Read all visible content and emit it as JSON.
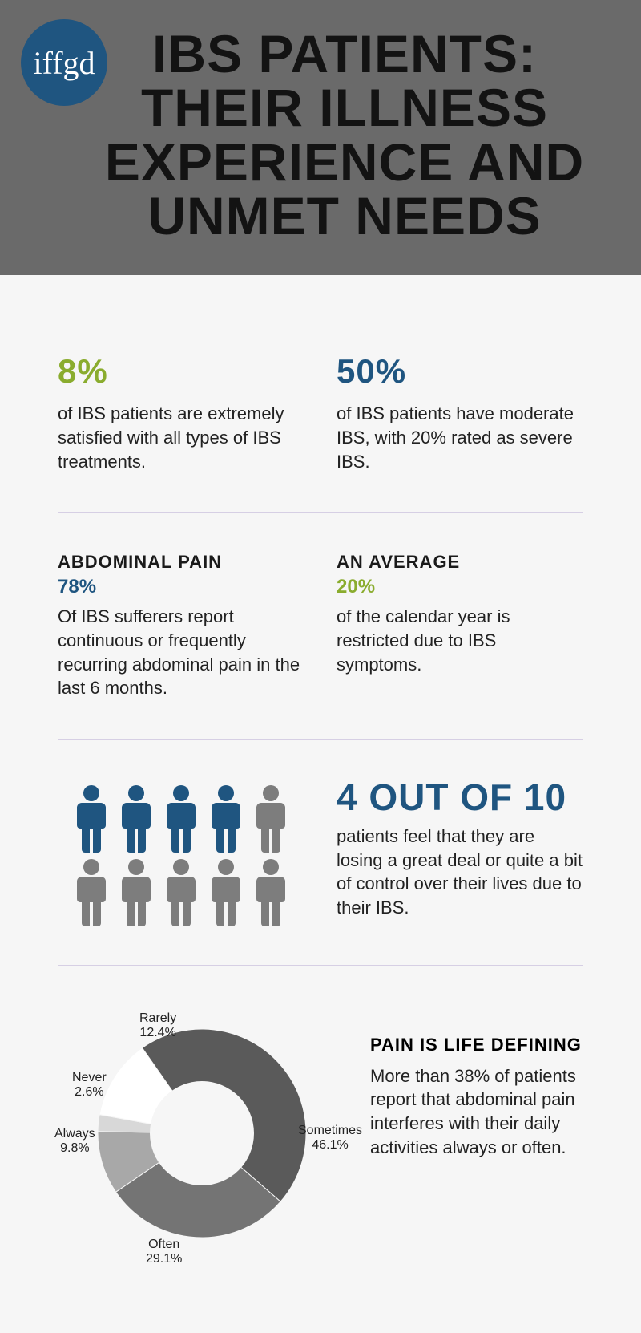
{
  "logo": "iffgd",
  "title": "IBS PATIENTS: THEIR ILLNESS EXPERIENCE AND UNMET NEEDS",
  "stats": {
    "satisfied": {
      "pct": "8%",
      "text": "of IBS patients are extremely satisfied with all types of IBS treatments.",
      "color": "#8aac2e"
    },
    "moderate": {
      "pct": "50%",
      "text": "of IBS patients have moderate IBS, with 20% rated as severe IBS.",
      "color": "#1f5580"
    },
    "abdominal": {
      "head": "ABDOMINAL PAIN",
      "pct": "78%",
      "text": "Of IBS sufferers report continuous or frequently recurring abdominal pain in the last 6 months.",
      "color": "#1f5580"
    },
    "average": {
      "head": "AN AVERAGE",
      "pct": "20%",
      "text": "of the calendar year is restricted due to IBS symptoms.",
      "color": "#8aac2e"
    },
    "control": {
      "big": "4 OUT OF 10",
      "text": "patients feel that they are losing a great deal or quite a bit of control over their lives due to their IBS.",
      "color": "#1f5580"
    }
  },
  "people": {
    "highlighted": 4,
    "total": 10,
    "hl_color": "#1f5580",
    "dim_color": "#7d7d7d"
  },
  "donut": {
    "slices": [
      {
        "label": "Sometimes",
        "pct": "46.1%",
        "value": 46.1,
        "color": "#5a5a5a"
      },
      {
        "label": "Often",
        "pct": "29.1%",
        "value": 29.1,
        "color": "#747474"
      },
      {
        "label": "Always",
        "pct": "9.8%",
        "value": 9.8,
        "color": "#a8a8a8"
      },
      {
        "label": "Never",
        "pct": "2.6%",
        "value": 2.6,
        "color": "#d8d8d8"
      },
      {
        "label": "Rarely",
        "pct": "12.4%",
        "value": 12.4,
        "color": "#ffffff"
      }
    ],
    "start_angle_deg": -35
  },
  "pain": {
    "head": "PAIN IS LIFE DEFINING",
    "text": "More than 38% of patients report that abdominal pain interferes with their daily activities always or often."
  }
}
